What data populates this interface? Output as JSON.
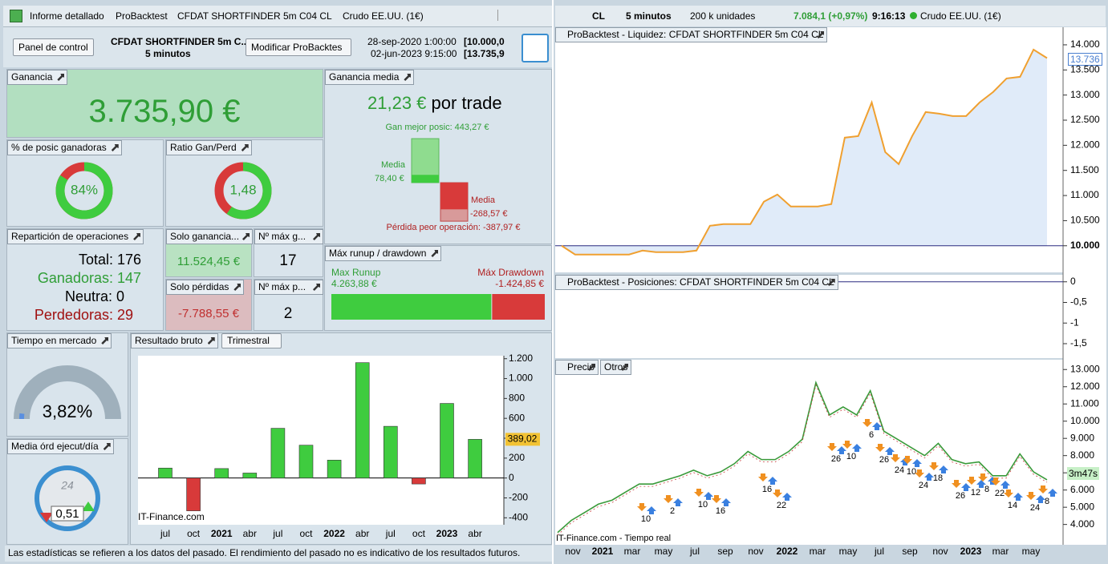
{
  "left_window": {
    "tabs": [
      "Informe detallado",
      "ProBacktest",
      "CFDAT SHORTFINDER 5m C04 CL",
      "Crudo EE.UU. (1€)"
    ],
    "toolbar": {
      "panel_select": "Panel de control",
      "system_name": "CFDAT SHORTFINDER 5m C...",
      "timeframe": "5 minutos",
      "modify_button": "Modificar ProBacktes",
      "start_date": "28-sep-2020 1:00:00",
      "start_value": "[10.000,0",
      "end_date": "02-jun-2023 9:15:00",
      "end_value": "[13.735,9"
    },
    "gain": {
      "title": "Ganancia",
      "value": "3.735,90 €"
    },
    "avg_gain": {
      "title": "Ganancia media",
      "value": "21,23 €",
      "suffix": "por trade",
      "best": {
        "value": 443.27,
        "label": "Gan mejor posic: 443,27 €"
      },
      "avg_win_label": "Media",
      "avg_win": {
        "value": 78.4,
        "label": "78,40 €"
      },
      "avg_loss_label": "Media",
      "avg_loss": {
        "value": -268.57,
        "label": "-268,57 €"
      },
      "worst": {
        "value": -387.97,
        "label": "Pérdida peor operación: -387,97 €"
      }
    },
    "win_pct": {
      "title": "% de posic ganadoras",
      "value": 84,
      "label": "84%"
    },
    "ratio": {
      "title": "Ratio Gan/Perd",
      "value": 1.48,
      "label": "1,48"
    },
    "distribution": {
      "title": "Repartición de operaciones",
      "total": "Total: 176",
      "winners": "Ganadoras: 147",
      "neutral": "Neutra: 0",
      "losers": "Perdedoras: 29"
    },
    "only_gains": {
      "title": "Solo ganancia...",
      "value": "11.524,45 €"
    },
    "max_consec_gains": {
      "title": "Nº máx g...",
      "value": 17
    },
    "only_losses": {
      "title": "Solo pérdidas",
      "value": "-7.788,55 €"
    },
    "max_consec_losses": {
      "title": "Nº máx p...",
      "value": 2
    },
    "runup": {
      "title": "Máx runup / drawdown",
      "runup_label": "Max Runup",
      "runup": {
        "value": 4263.88,
        "label": "4.263,88 €"
      },
      "drawdown_label": "Máx Drawdown",
      "drawdown": {
        "value": -1424.85,
        "label": "-1.424,85 €"
      }
    },
    "market_time": {
      "title": "Tiempo en mercado",
      "value": 3.82,
      "label": "3,82%"
    },
    "orders_per_day": {
      "title": "Media órd ejecut/día",
      "value": "0,51",
      "dial": 24
    },
    "gross_result": {
      "title": "Resultado bruto",
      "period": "Trimestral",
      "categories": [
        "jul",
        "oct",
        "2021",
        "abr",
        "jul",
        "oct",
        "2022",
        "abr",
        "jul",
        "oct",
        "2023",
        "abr"
      ],
      "values": [
        100,
        -330,
        95,
        50,
        500,
        330,
        180,
        1160,
        520,
        -60,
        750,
        389.02
      ],
      "last_value_label": "389,02",
      "ylim": [
        -470,
        1230
      ],
      "yticks": [
        {
          "value": 1200,
          "label": "1.200"
        },
        {
          "value": 1000,
          "label": "1.000"
        },
        800,
        600,
        400,
        200,
        0,
        -200,
        -400
      ],
      "watermark": "IT-Finance.com"
    },
    "disclaimer": "Las estadísticas se refieren a los datos del pasado. El rendimiento del pasado no es indicativo de los resultados futuros."
  },
  "right_window": {
    "toolbar": {
      "symbol": "CL",
      "timeframe": "5 minutos",
      "units": "200 k unidades",
      "last_price": "7.084,1 (+0,97%)",
      "time": "9:16:13",
      "instrument": "Crudo EE.UU. (1€)"
    },
    "equity": {
      "title": "ProBacktest - Liquidez: CFDAT SHORTFINDER 5m C04 CL",
      "current": "13.736",
      "ylim": [
        9470,
        14350
      ],
      "values": [
        10000,
        9825,
        9825,
        9825,
        9825,
        9825,
        9904,
        9872,
        9872,
        9872,
        9904,
        10398,
        10430,
        10430,
        10430,
        10877,
        11020,
        10781,
        10781,
        10781,
        10829,
        12152,
        12184,
        12853,
        11865,
        11626,
        12184,
        12662,
        12630,
        12582,
        12582,
        12853,
        13060,
        13331,
        13363,
        13905,
        13736
      ],
      "yticks": [
        {
          "value": 14000,
          "label": "14.000"
        },
        {
          "value": 13500,
          "label": "13.500"
        },
        {
          "value": 13000,
          "label": "13.000"
        },
        {
          "value": 12500,
          "label": "12.500"
        },
        {
          "value": 12000,
          "label": "12.000"
        },
        {
          "value": 11500,
          "label": "11.500"
        },
        {
          "value": 11000,
          "label": "11.000"
        },
        {
          "value": 10500,
          "label": "10.500"
        },
        {
          "value": 10000,
          "label": "10.000"
        }
      ]
    },
    "positions": {
      "title": "ProBacktest - Posiciones: CFDAT SHORTFINDER 5m C04 CL",
      "ylim": [
        -1.85,
        0.17
      ],
      "yticks": [
        0,
        {
          "value": -0.5,
          "label": "-0,5"
        },
        -1,
        {
          "value": -1.5,
          "label": "-1,5"
        }
      ]
    },
    "price": {
      "tabs": [
        "Precio",
        "Otros"
      ],
      "ylim": [
        2820,
        13570
      ],
      "timer": "3m47s",
      "watermark": "IT-Finance.com - Tiempo real",
      "values": [
        3530,
        4235,
        4700,
        5180,
        5410,
        5880,
        6350,
        6350,
        6590,
        6830,
        7155,
        6830,
        7060,
        7530,
        8240,
        7770,
        7770,
        8240,
        8950,
        12240,
        10360,
        10830,
        10360,
        11770,
        9420,
        8950,
        8470,
        8000,
        8710,
        7770,
        7530,
        7630,
        6830,
        6830,
        8100,
        7060,
        6590
      ],
      "yticks": [
        {
          "value": 13000,
          "label": "13.000"
        },
        {
          "value": 12000,
          "label": "12.000"
        },
        {
          "value": 11000,
          "label": "11.000"
        },
        {
          "value": 10000,
          "label": "10.000"
        },
        {
          "value": 9000,
          "label": "9.000"
        },
        {
          "value": 8000,
          "label": "8.000"
        },
        {
          "value": 7000,
          "label": "7.000"
        },
        {
          "value": 6000,
          "label": "6.000"
        },
        {
          "value": 5000,
          "label": "5.000"
        },
        {
          "value": 4000,
          "label": "4.000"
        }
      ],
      "trade_labels": [
        10,
        2,
        10,
        16,
        16,
        22,
        26,
        10,
        6,
        26,
        24,
        10,
        24,
        18,
        26,
        12,
        8,
        22,
        14,
        24,
        8
      ]
    },
    "x_axis": [
      "nov",
      "2021",
      "mar",
      "may",
      "jul",
      "sep",
      "nov",
      "2022",
      "mar",
      "may",
      "jul",
      "sep",
      "nov",
      "2023",
      "mar",
      "may"
    ]
  }
}
